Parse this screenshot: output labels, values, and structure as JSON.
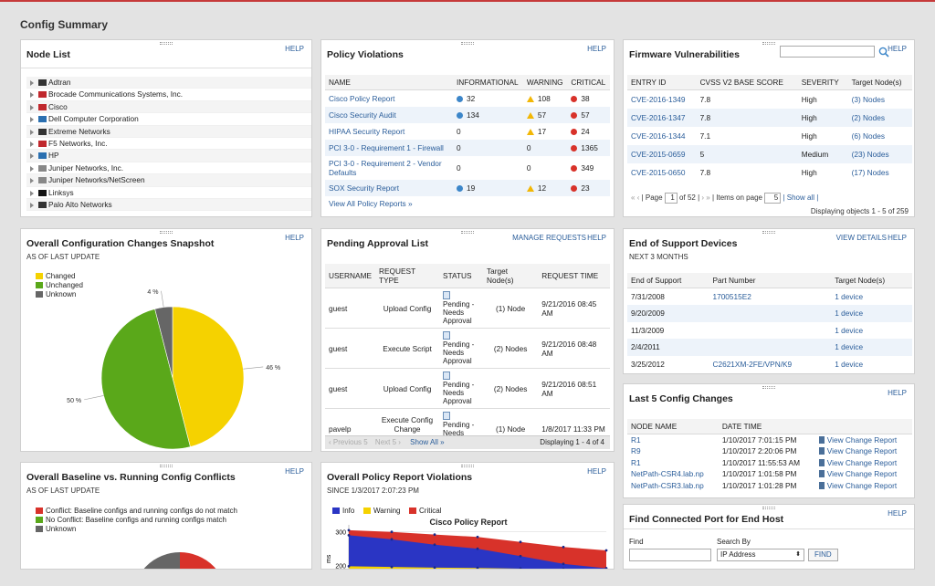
{
  "page_title": "Config Summary",
  "colors": {
    "link": "#2a5d9a",
    "changed": "#f5d200",
    "unchanged": "#5aa81a",
    "unknown": "#666666",
    "info": "#3c86c9",
    "warning": "#f2b705",
    "critical": "#d8322a"
  },
  "node_list": {
    "title": "Node List",
    "help": "HELP",
    "items": [
      {
        "name": "Adtran",
        "logo_color": "#333"
      },
      {
        "name": "Brocade Communications Systems, Inc.",
        "logo_color": "#c0282d"
      },
      {
        "name": "Cisco",
        "logo_color": "#c0282d"
      },
      {
        "name": "Dell Computer Corporation",
        "logo_color": "#2a6fb0"
      },
      {
        "name": "Extreme Networks",
        "logo_color": "#333"
      },
      {
        "name": "F5 Networks, Inc.",
        "logo_color": "#c0282d"
      },
      {
        "name": "HP",
        "logo_color": "#2a6fb0"
      },
      {
        "name": "Juniper Networks, Inc.",
        "logo_color": "#888"
      },
      {
        "name": "Juniper Networks/NetScreen",
        "logo_color": "#888"
      },
      {
        "name": "Linksys",
        "logo_color": "#111"
      },
      {
        "name": "Palo Alto Networks",
        "logo_color": "#333"
      }
    ]
  },
  "policy_violations": {
    "title": "Policy Violations",
    "help": "HELP",
    "columns": [
      "NAME",
      "INFORMATIONAL",
      "WARNING",
      "CRITICAL"
    ],
    "rows": [
      {
        "name": "Cisco Policy Report",
        "info": "32",
        "warning": "108",
        "critical": "38"
      },
      {
        "name": "Cisco Security Audit",
        "info": "134",
        "warning": "57",
        "critical": "57"
      },
      {
        "name": "HIPAA Security Report",
        "info": "0",
        "warning": "17",
        "critical": "24"
      },
      {
        "name": "PCI 3-0 - Requirement 1 - Firewall",
        "info": "0",
        "warning": "0",
        "critical": "1365"
      },
      {
        "name": "PCI 3-0 - Requirement 2 - Vendor Defaults",
        "info": "0",
        "warning": "0",
        "critical": "349"
      },
      {
        "name": "SOX Security Report",
        "info": "19",
        "warning": "12",
        "critical": "23"
      }
    ],
    "view_all": "View All Policy Reports »"
  },
  "firmware": {
    "title": "Firmware Vulnerabilities",
    "help": "HELP",
    "search_value": "",
    "columns": [
      "ENTRY ID",
      "CVSS V2 BASE SCORE",
      "SEVERITY",
      "Target Node(s)"
    ],
    "rows": [
      {
        "id": "CVE-2016-1349",
        "score": "7.8",
        "severity": "High",
        "nodes": "(3) Nodes"
      },
      {
        "id": "CVE-2016-1347",
        "score": "7.8",
        "severity": "High",
        "nodes": "(2) Nodes"
      },
      {
        "id": "CVE-2016-1344",
        "score": "7.1",
        "severity": "High",
        "nodes": "(6) Nodes"
      },
      {
        "id": "CVE-2015-0659",
        "score": "5",
        "severity": "Medium",
        "nodes": "(23) Nodes"
      },
      {
        "id": "CVE-2015-0650",
        "score": "7.8",
        "severity": "High",
        "nodes": "(17) Nodes"
      }
    ],
    "pager": {
      "page_label": "| Page",
      "page_value": "1",
      "of_label": "of 52 |",
      "items_label": "| Items on page",
      "items_value": "5",
      "show_all": "| Show all |",
      "displaying": "Displaying objects 1 - 5 of 259"
    }
  },
  "config_changes": {
    "title": "Overall Configuration Changes Snapshot",
    "subtitle": "AS OF LAST UPDATE",
    "help": "HELP",
    "legend": [
      "Changed",
      "Unchanged",
      "Unknown"
    ],
    "labels": {
      "changed": "46 %",
      "unchanged": "50 %",
      "unknown": "4 %"
    }
  },
  "pending": {
    "title": "Pending Approval List",
    "manage": "MANAGE REQUESTS",
    "help": "HELP",
    "columns": [
      "USERNAME",
      "REQUEST TYPE",
      "STATUS",
      "Target Node(s)",
      "REQUEST TIME"
    ],
    "rows": [
      {
        "user": "guest",
        "type": "Upload Config",
        "status": "Pending - Needs Approval",
        "nodes": "(1) Node",
        "time": "9/21/2016 08:45 AM"
      },
      {
        "user": "guest",
        "type": "Execute Script",
        "status": "Pending - Needs Approval",
        "nodes": "(2) Nodes",
        "time": "9/21/2016 08:48 AM"
      },
      {
        "user": "guest",
        "type": "Upload Config",
        "status": "Pending - Needs Approval",
        "nodes": "(2) Nodes",
        "time": "9/21/2016 08:51 AM"
      },
      {
        "user": "pavelp",
        "type": "Execute Config Change Template",
        "status": "Pending - Needs Approval",
        "nodes": "(1) Node",
        "time": "1/8/2017 11:33 PM"
      }
    ],
    "footer": {
      "prev": "Previous 5",
      "next": "Next 5",
      "show_all": "Show All",
      "displaying": "Displaying 1 - 4 of 4"
    }
  },
  "eos": {
    "title": "End of Support Devices",
    "subtitle": "NEXT 3 MONTHS",
    "view_details": "VIEW DETAILS",
    "help": "HELP",
    "columns": [
      "End of Support",
      "Part Number",
      "Target Node(s)"
    ],
    "rows": [
      {
        "date": "7/31/2008",
        "part": "1700515E2",
        "nodes": "1 device"
      },
      {
        "date": "9/20/2009",
        "part": "",
        "nodes": "1 device"
      },
      {
        "date": "11/3/2009",
        "part": "",
        "nodes": "1 device"
      },
      {
        "date": "2/4/2011",
        "part": "",
        "nodes": "1 device"
      },
      {
        "date": "3/25/2012",
        "part": "C2621XM-2FE/VPN/K9",
        "nodes": "1 device"
      }
    ]
  },
  "last5": {
    "title": "Last 5 Config Changes",
    "help": "HELP",
    "columns": [
      "NODE NAME",
      "DATE TIME",
      ""
    ],
    "rows": [
      {
        "node": "R1",
        "time": "1/10/2017 7:01:15 PM",
        "action": "View Change Report"
      },
      {
        "node": "R9",
        "time": "1/10/2017 2:20:06 PM",
        "action": "View Change Report"
      },
      {
        "node": "R1",
        "time": "1/10/2017 11:55:53 AM",
        "action": "View Change Report"
      },
      {
        "node": "NetPath-CSR4.lab.np",
        "time": "1/10/2017 1:01:58 PM",
        "action": "View Change Report"
      },
      {
        "node": "NetPath-CSR3.lab.np",
        "time": "1/10/2017 1:01:28 PM",
        "action": "View Change Report"
      }
    ]
  },
  "baseline": {
    "title": "Overall Baseline vs. Running Config Conflicts",
    "subtitle": "AS OF LAST UPDATE",
    "help": "HELP",
    "legend": [
      "Conflict: Baseline configs and running configs do not match",
      "No Conflict: Baseline configs and running configs match",
      "Unknown"
    ]
  },
  "policy_report": {
    "title": "Overall Policy Report Violations",
    "subtitle": "SINCE 1/3/2017 2:07:23 PM",
    "help": "HELP",
    "legend": [
      "Info",
      "Warning",
      "Critical"
    ],
    "chart_title": "Cisco Policy Report",
    "ylabel": "ms"
  },
  "chart_data": [
    {
      "type": "pie",
      "categories": [
        "Changed",
        "Unchanged",
        "Unknown"
      ],
      "values": [
        46,
        50,
        4
      ],
      "colors": [
        "#f5d200",
        "#5aa81a",
        "#666666"
      ]
    },
    {
      "type": "area",
      "title": "Cisco Policy Report",
      "ylabel": "ms",
      "y_ticks": [
        200,
        300
      ],
      "ylim": [
        180,
        310
      ],
      "x": [
        0,
        1,
        2,
        3,
        4,
        5,
        6
      ],
      "series": [
        {
          "name": "Critical",
          "values": [
            305,
            300,
            292,
            285,
            270,
            255,
            245
          ]
        },
        {
          "name": "Info",
          "values": [
            290,
            278,
            262,
            250,
            228,
            205,
            192
          ]
        },
        {
          "name": "Warning",
          "values": [
            198,
            196,
            194,
            193,
            191,
            190,
            189
          ]
        }
      ]
    }
  ],
  "find_port": {
    "title": "Find Connected Port for End Host",
    "help": "HELP",
    "find_label": "Find",
    "find_value": "",
    "search_by_label": "Search By",
    "search_by_value": "IP Address",
    "button": "FIND"
  }
}
